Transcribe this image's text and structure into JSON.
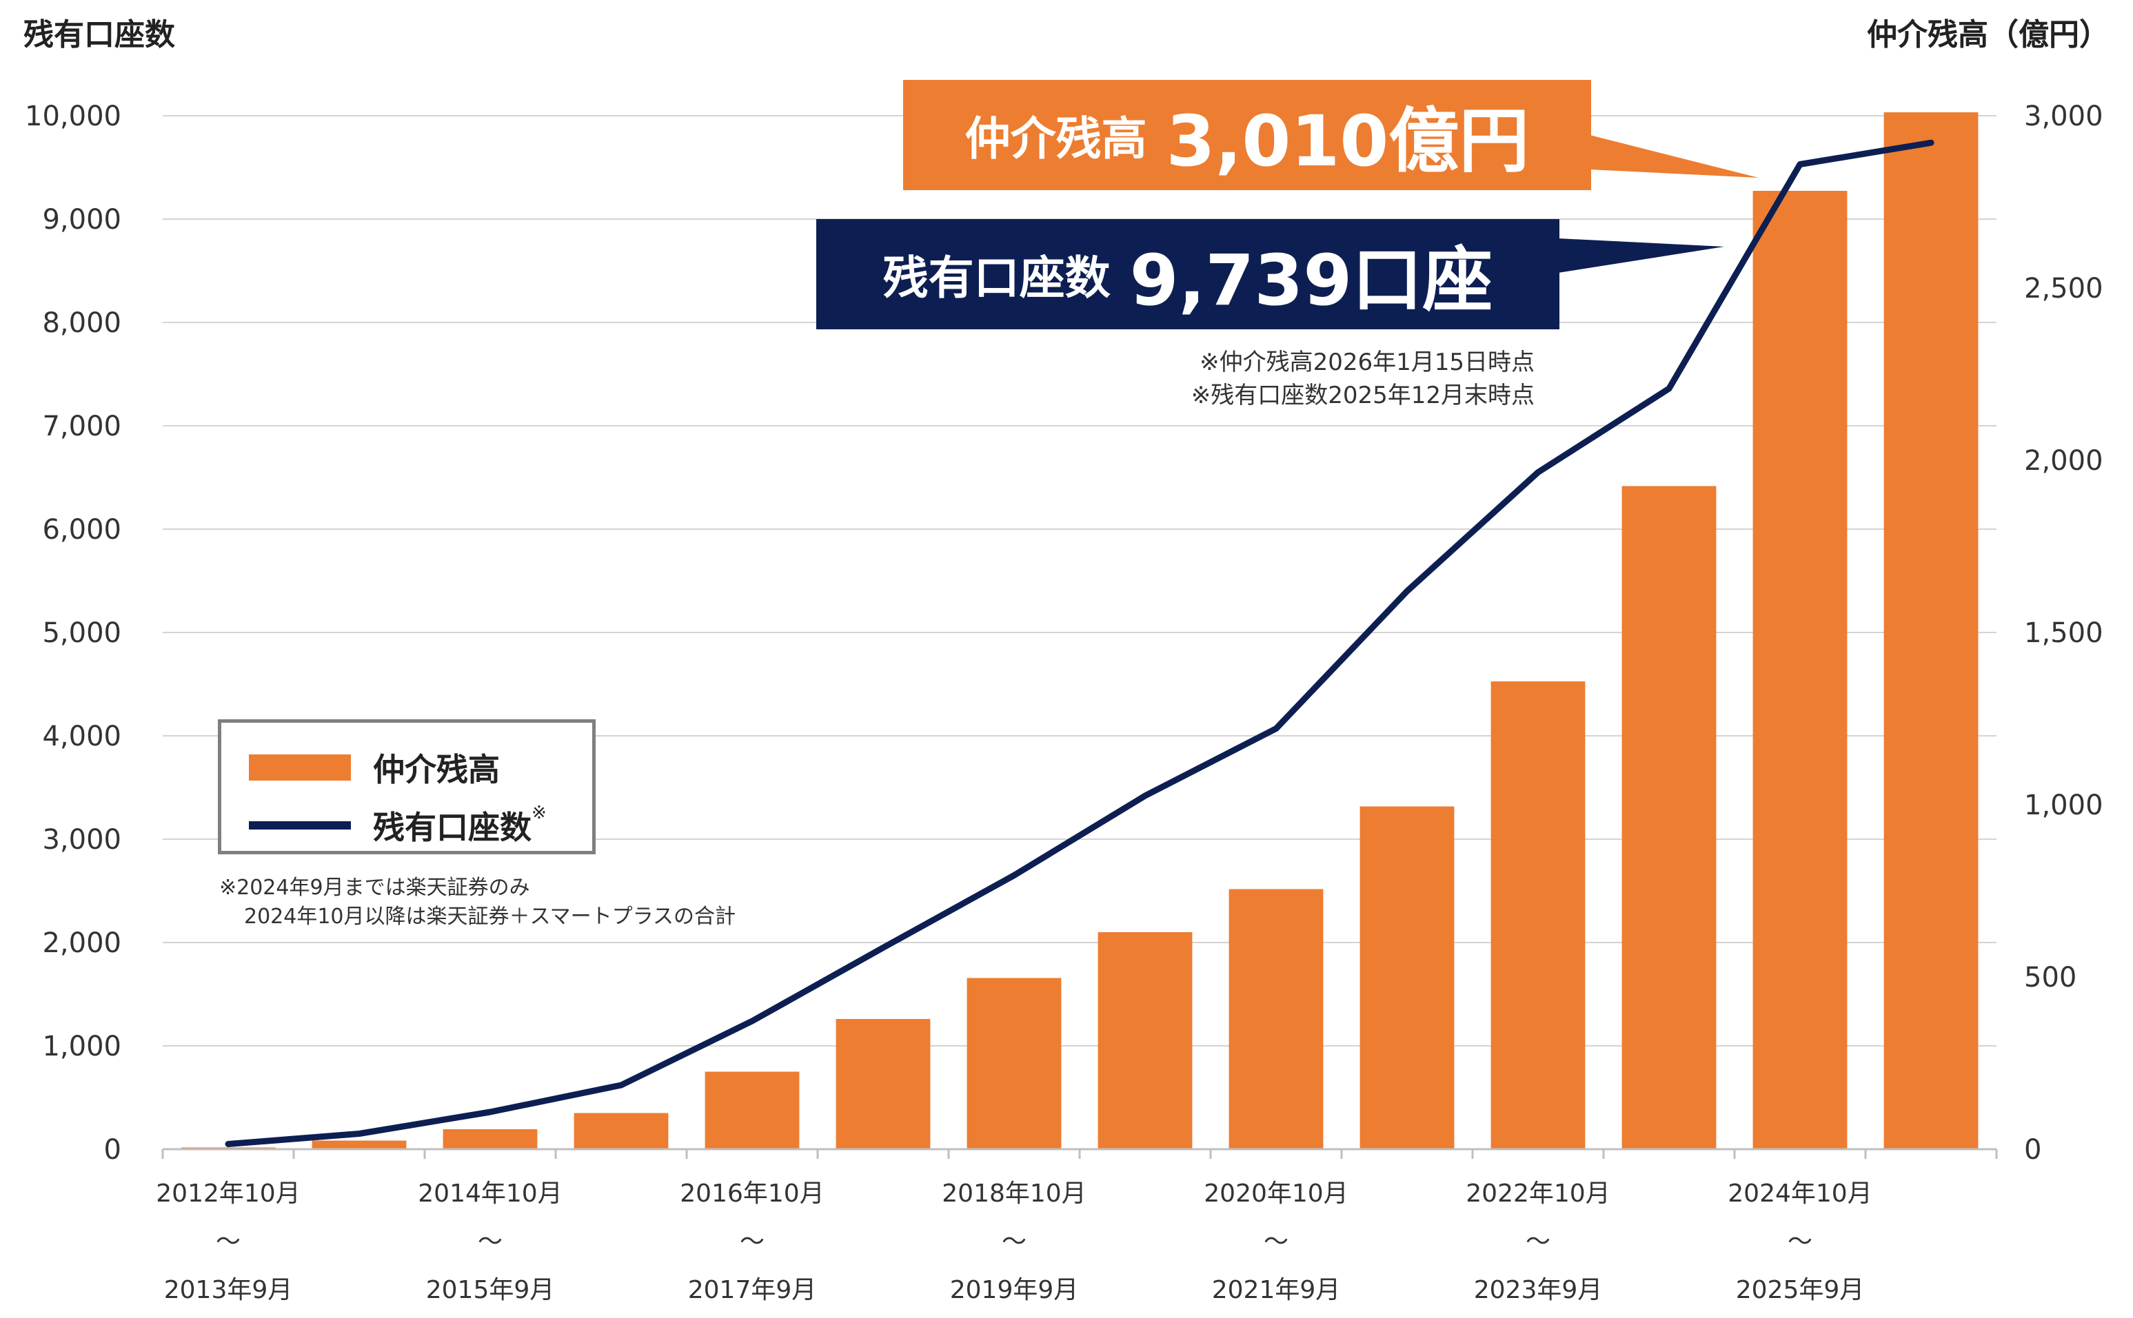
{
  "chart_data": {
    "type": "bar+line",
    "left_axis_title": "残有口座数",
    "right_axis_title": "仲介残高（億円）",
    "categories": [
      {
        "start": "2012年10月",
        "end": "2013年9月"
      },
      {
        "start": "",
        "end": ""
      },
      {
        "start": "2014年10月",
        "end": "2015年9月"
      },
      {
        "start": "",
        "end": ""
      },
      {
        "start": "2016年10月",
        "end": "2017年9月"
      },
      {
        "start": "",
        "end": ""
      },
      {
        "start": "2018年10月",
        "end": "2019年9月"
      },
      {
        "start": "",
        "end": ""
      },
      {
        "start": "2020年10月",
        "end": "2021年9月"
      },
      {
        "start": "",
        "end": ""
      },
      {
        "start": "2022年10月",
        "end": "2023年9月"
      },
      {
        "start": "",
        "end": ""
      },
      {
        "start": "2024年10月",
        "end": "2025年9月"
      },
      {
        "start": "",
        "end": ""
      }
    ],
    "range_symbol": "～",
    "series": [
      {
        "name": "仲介残高",
        "type": "bar",
        "axis": "right",
        "color": "#ed7d31",
        "values": [
          5,
          25,
          58,
          105,
          225,
          378,
          497,
          630,
          755,
          995,
          1358,
          1925,
          2782,
          3010
        ]
      },
      {
        "name": "残有口座数",
        "type": "line",
        "axis": "left",
        "color": "#0d1f52",
        "values": [
          50,
          150,
          360,
          620,
          1240,
          1950,
          2650,
          3420,
          4070,
          5400,
          6550,
          7360,
          9530,
          9739
        ]
      }
    ],
    "left_ylim": [
      0,
      10000
    ],
    "left_ticks": [
      "0",
      "1,000",
      "2,000",
      "3,000",
      "4,000",
      "5,000",
      "6,000",
      "7,000",
      "8,000",
      "9,000",
      "10,000"
    ],
    "right_ylim": [
      0,
      3000
    ],
    "right_ticks": [
      "0",
      "500",
      "1,000",
      "1,500",
      "2,000",
      "2,500",
      "3,000"
    ],
    "grid": true,
    "legend": {
      "items": [
        {
          "label": "仲介残高",
          "marker": "bar"
        },
        {
          "label": "残有口座数",
          "marker": "line",
          "suffix": "※"
        }
      ],
      "placement": "middle-left"
    },
    "callouts": {
      "balance": {
        "label": "仲介残高",
        "value": "3,010億円",
        "color": "#ed7d31"
      },
      "accounts": {
        "label": "残有口座数",
        "value": "9,739口座",
        "color": "#0d1f52"
      }
    },
    "notes": [
      "※仲介残高2026年1月15日時点",
      "※残有口座数2025年12月末時点"
    ],
    "footnotes": [
      "※2024年9月までは楽天証券のみ",
      "2024年10月以降は楽天証券＋スマートプラスの合計"
    ]
  }
}
